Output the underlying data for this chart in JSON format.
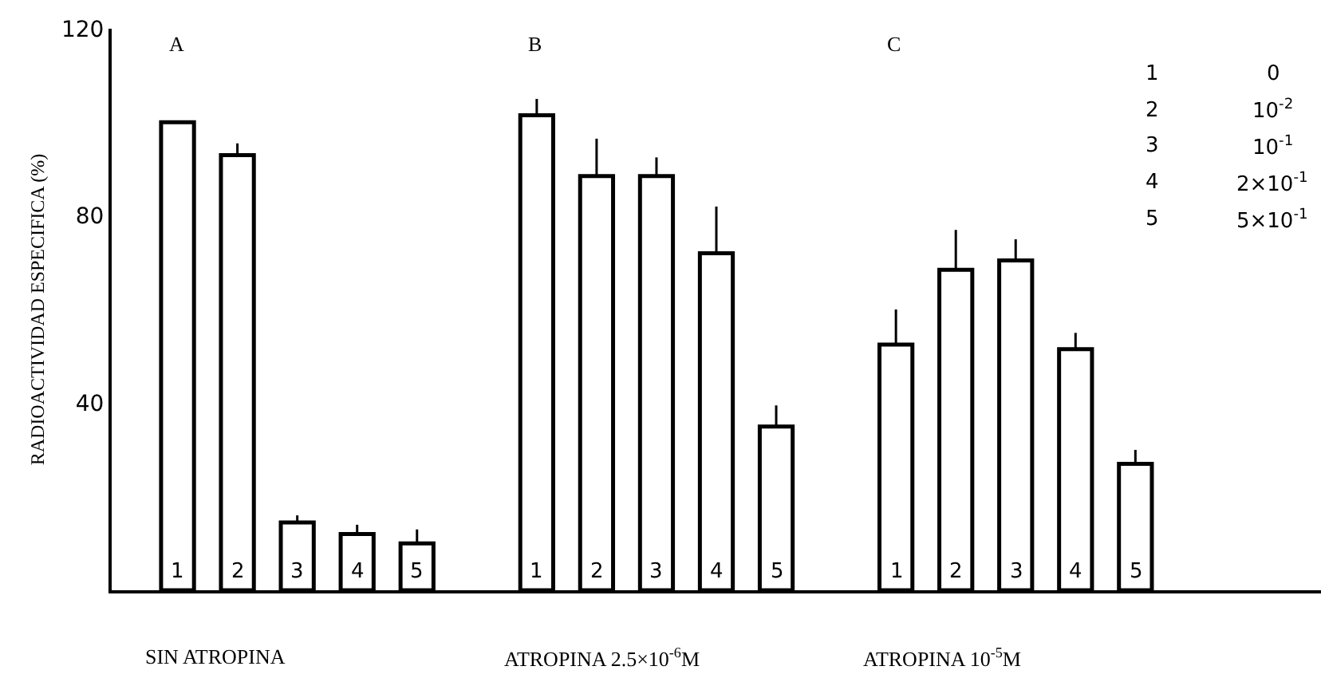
{
  "chart_data": {
    "type": "bar",
    "ylabel": "RADIOACTIVIDAD ESPECIFICA (%)",
    "categories": [
      "1",
      "2",
      "3",
      "4",
      "5",
      null,
      "1",
      "2",
      "3",
      "4",
      "5",
      null,
      "1",
      "2",
      "3",
      "4",
      "5"
    ],
    "values": [
      100,
      93,
      14.5,
      12,
      10,
      null,
      101.5,
      88.5,
      88.5,
      72,
      35,
      null,
      52.5,
      68.5,
      70.5,
      51.5,
      27
    ],
    "errors": [
      null,
      [
        93,
        95.5
      ],
      [
        14.5,
        16
      ],
      [
        12,
        14
      ],
      [
        10,
        13
      ],
      null,
      [
        101.5,
        105
      ],
      [
        88.5,
        96.5
      ],
      [
        88.5,
        92.5
      ],
      [
        72,
        82
      ],
      [
        35,
        39.5
      ],
      null,
      [
        52.5,
        60
      ],
      [
        68.5,
        77
      ],
      [
        70.5,
        75
      ],
      [
        51.5,
        55
      ],
      [
        27,
        30
      ]
    ],
    "color": "#ffffff",
    "ylim": [
      0,
      120
    ],
    "yticks": [
      40,
      80,
      120
    ],
    "annotations": [
      "A",
      "B",
      "C",
      "SIN ATROPINA",
      "ATROPINA 2.5×10$^{-6}$M",
      "ATROPINA 10$^{-5}$M",
      "1",
      "0",
      "2",
      "10$^{-2}$",
      "3",
      "10$^{-1}$",
      "4",
      "2×10$^{-1}$",
      "5",
      "5×10$^{-1}$"
    ]
  }
}
